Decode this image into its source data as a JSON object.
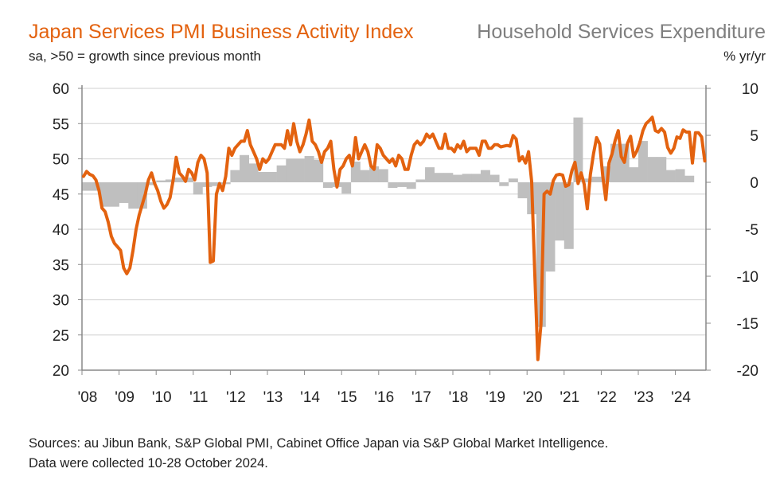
{
  "chart_data": {
    "type": "line+bar",
    "title_left": "Japan Services PMI Business Activity Index",
    "subtitle_left": "sa, >50 = growth since previous month",
    "title_right": "Household Services Expenditure",
    "subtitle_right": "% yr/yr",
    "colors": {
      "pmi": "#E3620F",
      "expenditure": "#BFBFBF",
      "title_left": "#E3620F",
      "title_right": "#7F7F7F"
    },
    "x_tick_labels": [
      "'08",
      "'09",
      "'10",
      "'11",
      "'12",
      "'13",
      "'14",
      "'15",
      "'16",
      "'17",
      "'18",
      "'19",
      "'20",
      "'21",
      "'22",
      "'23",
      "'24"
    ],
    "y_left": {
      "range": [
        20,
        60
      ],
      "ticks": [
        "20",
        "25",
        "30",
        "35",
        "40",
        "45",
        "50",
        "55",
        "60"
      ]
    },
    "y_right": {
      "range": [
        -20,
        10
      ],
      "ticks": [
        "-20",
        "-15",
        "-10",
        "-5",
        "0",
        "5",
        "10"
      ]
    },
    "grid": true,
    "pmi_monthly": {
      "start": "2008-01",
      "frequency": "monthly",
      "values": [
        47.5,
        48.2,
        47.8,
        47.6,
        47.0,
        45.5,
        43.0,
        42.5,
        41.0,
        39.0,
        38.0,
        37.5,
        37.0,
        34.5,
        33.7,
        34.5,
        37.0,
        40.0,
        42.0,
        43.5,
        45.0,
        47.0,
        48.0,
        46.5,
        45.5,
        44.0,
        43.0,
        43.5,
        44.5,
        47.0,
        50.2,
        48.0,
        47.5,
        46.8,
        48.5,
        48.0,
        47.0,
        49.5,
        50.5,
        50.0,
        48.0,
        35.3,
        35.5,
        45.0,
        46.5,
        45.5,
        47.5,
        51.5,
        50.5,
        51.5,
        52.0,
        52.5,
        52.5,
        54.0,
        52.0,
        51.0,
        50.0,
        48.5,
        50.0,
        49.5,
        50.0,
        51.0,
        52.0,
        52.0,
        52.0,
        51.5,
        54.0,
        52.0,
        55.0,
        52.5,
        51.0,
        52.0,
        53.5,
        55.5,
        52.5,
        52.0,
        51.0,
        49.5,
        51.0,
        51.5,
        52.5,
        48.5,
        46.0,
        48.5,
        49.0,
        50.0,
        50.5,
        49.0,
        53.0,
        50.0,
        51.0,
        52.0,
        51.0,
        49.0,
        48.5,
        52.0,
        51.5,
        50.5,
        50.0,
        49.5,
        50.0,
        49.0,
        50.5,
        50.0,
        48.5,
        48.5,
        50.5,
        52.0,
        52.5,
        52.0,
        52.5,
        53.5,
        53.0,
        53.5,
        52.5,
        51.5,
        51.5,
        53.5,
        51.5,
        51.5,
        51.0,
        52.0,
        51.5,
        52.5,
        51.0,
        51.5,
        51.5,
        51.5,
        50.5,
        52.5,
        52.5,
        51.5,
        51.5,
        52.0,
        52.0,
        51.7,
        51.8,
        51.9,
        51.8,
        53.3,
        52.8,
        49.7,
        50.3,
        49.4,
        51.0,
        46.8,
        33.8,
        21.5,
        26.5,
        45.0,
        45.4,
        45.0,
        46.9,
        47.7,
        47.8,
        47.7,
        46.1,
        46.3,
        48.3,
        49.5,
        46.5,
        48.0,
        46.4,
        42.9,
        47.8,
        50.7,
        53.0,
        52.1,
        47.6,
        44.2,
        49.4,
        50.7,
        52.6,
        54.0,
        50.3,
        49.5,
        52.2,
        53.2,
        50.3,
        51.1,
        52.3,
        54.0,
        55.0,
        55.4,
        55.9,
        54.0,
        53.8,
        54.3,
        53.8,
        51.6,
        50.8,
        51.5,
        53.1,
        52.9,
        54.1,
        53.8,
        53.8,
        49.4,
        53.7,
        53.7,
        53.1,
        49.7
      ]
    },
    "expenditure_quarterly": {
      "start": "2008-Q1",
      "frequency": "quarterly",
      "values": [
        -0.9,
        -0.9,
        -2.6,
        -2.6,
        -2.2,
        -2.8,
        -2.8,
        -0.3,
        0.2,
        0.3,
        0.5,
        0.5,
        -1.3,
        -0.5,
        -0.4,
        -0.2,
        1.3,
        2.9,
        2.0,
        1.1,
        1.1,
        1.8,
        2.5,
        2.5,
        2.8,
        2.4,
        -0.6,
        -0.5,
        -1.2,
        2.2,
        1.3,
        1.7,
        1.4,
        -0.6,
        -0.5,
        -0.7,
        0.3,
        1.6,
        1.0,
        1.0,
        0.8,
        0.9,
        0.9,
        1.3,
        0.8,
        -0.4,
        0.4,
        -1.7,
        -3.4,
        -15.4,
        -9.5,
        -6.2,
        -7.1,
        6.9,
        0.4,
        0.6,
        1.7,
        4.1,
        4.1,
        1.6,
        4.4,
        2.7,
        2.7,
        1.3,
        1.4,
        0.7
      ]
    }
  },
  "footer": {
    "sources": "Sources: au Jibun Bank, S&P Global PMI, Cabinet Office Japan via S&P Global Market Intelligence.",
    "collected": "Data were collected 10-28 October 2024."
  }
}
